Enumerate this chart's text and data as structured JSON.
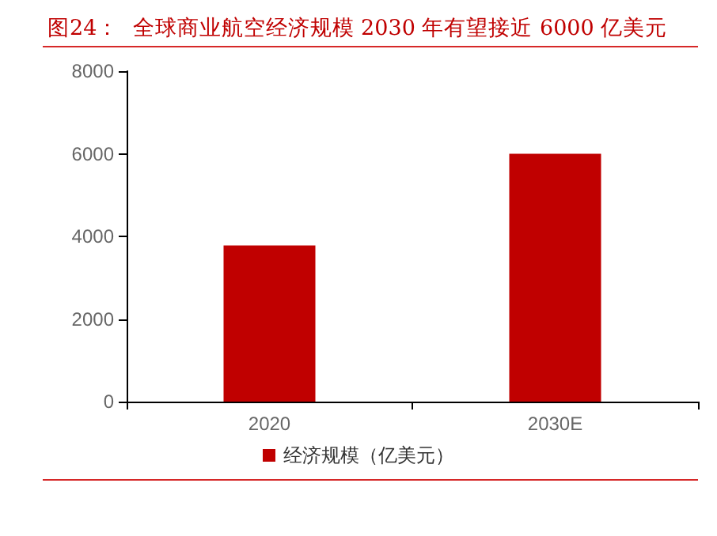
{
  "chart_data": {
    "type": "bar",
    "title": "图24：  全球商业航空经济规模 2030 年有望接近 6000 亿美元",
    "categories": [
      "2020",
      "2030E"
    ],
    "series": [
      {
        "name": "经济规模（亿美元）",
        "color": "#c00000",
        "values": [
          3780,
          6000
        ]
      }
    ],
    "ylim": [
      0,
      8000
    ],
    "yticks": [
      0,
      2000,
      4000,
      6000,
      8000
    ],
    "grid": false,
    "legend": "bottom"
  }
}
